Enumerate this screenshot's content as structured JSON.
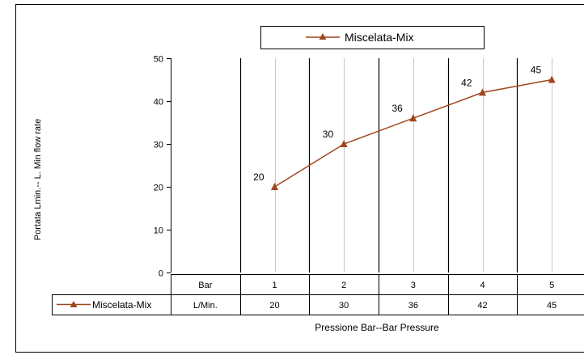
{
  "chart_data": {
    "type": "line",
    "legend": {
      "label": "Miscelata-Mix",
      "placement": "top"
    },
    "ylabel": "Portata Lmin.-- L. Min flow rate",
    "xlabel": "Pressione Bar--Bar Pressure",
    "ylim": [
      0,
      50
    ],
    "yticks": [
      "0",
      "10",
      "20",
      "30",
      "40",
      "50"
    ],
    "grid": true,
    "table_header_label": "Bar",
    "categories": [
      "1",
      "2",
      "3",
      "4",
      "5"
    ],
    "series": [
      {
        "name": "Miscelata-Mix",
        "unit_label": "L/Min.",
        "values": [
          20,
          30,
          36,
          42,
          45
        ],
        "color": "#a0461c",
        "marker": "triangle"
      }
    ]
  }
}
